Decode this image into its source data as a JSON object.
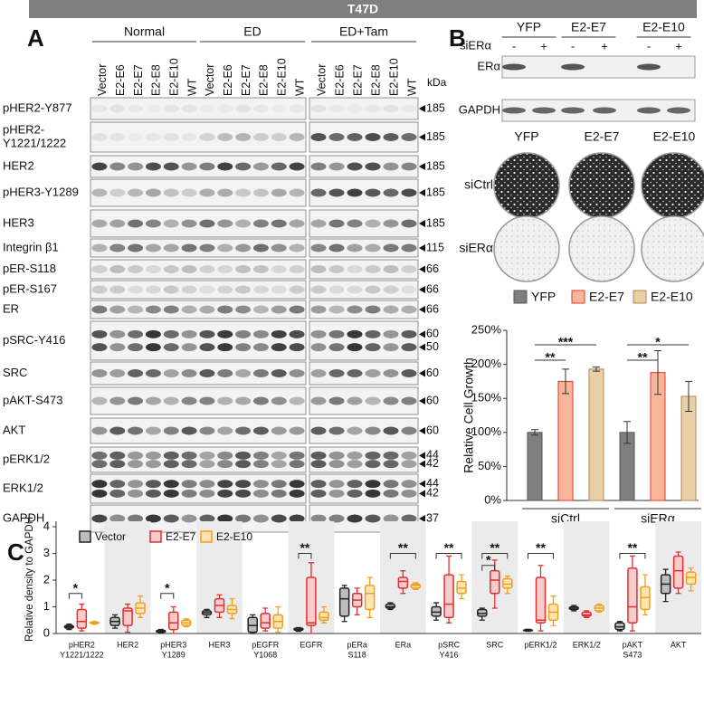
{
  "banner": "T47D",
  "panel_a": {
    "label": "A",
    "groups": [
      {
        "name": "Normal",
        "lanes": [
          "Vector",
          "E2-E6",
          "E2-E7",
          "E2-E8",
          "E2-E10",
          "WT"
        ]
      },
      {
        "name": "ED",
        "lanes": [
          "Vector",
          "E2-E6",
          "E2-E7",
          "E2-E8",
          "E2-E10",
          "WT"
        ]
      },
      {
        "name": "ED+Tam",
        "lanes": [
          "Vector",
          "E2-E6",
          "E2-E7",
          "E2-E8",
          "E2-E10",
          "WT"
        ]
      }
    ],
    "kda_header": "kDa",
    "rows": [
      {
        "label": [
          "pHER2-Y877"
        ],
        "kda": [
          "185"
        ]
      },
      {
        "label": [
          "pHER2-",
          "Y1221/1222"
        ],
        "kda": [
          "185"
        ]
      },
      {
        "label": [
          "HER2"
        ],
        "kda": [
          "185"
        ]
      },
      {
        "label": [
          "pHER3-Y1289"
        ],
        "kda": [
          "185"
        ]
      },
      {
        "label": [
          "HER3"
        ],
        "kda": [
          "185"
        ]
      },
      {
        "label": [
          "Integrin β1"
        ],
        "kda": [
          "115"
        ]
      },
      {
        "label": [
          "pER-S118"
        ],
        "kda": [
          "66"
        ]
      },
      {
        "label": [
          "pER-S167"
        ],
        "kda": [
          "66"
        ]
      },
      {
        "label": [
          "ER"
        ],
        "kda": [
          "66"
        ]
      },
      {
        "label": [
          "pSRC-Y416"
        ],
        "kda": [
          "60",
          "50"
        ]
      },
      {
        "label": [
          "SRC"
        ],
        "kda": [
          "60"
        ]
      },
      {
        "label": [
          "pAKT-S473"
        ],
        "kda": [
          "60"
        ]
      },
      {
        "label": [
          "AKT"
        ],
        "kda": [
          "60"
        ]
      },
      {
        "label": [
          "pERK1/2"
        ],
        "kda": [
          "44",
          "42"
        ]
      },
      {
        "label": [
          "ERK1/2"
        ],
        "kda": [
          "44",
          "42"
        ]
      },
      {
        "label": [
          "GAPDH"
        ],
        "kda": [
          "37"
        ]
      }
    ]
  },
  "panel_b": {
    "label": "B",
    "blot": {
      "groups": [
        "YFP",
        "E2-E7",
        "E2-E10"
      ],
      "treatment": "siERα",
      "lanes": [
        "-",
        "+",
        "-",
        "+",
        "-",
        "+"
      ],
      "rows": [
        "ERα",
        "GAPDH"
      ]
    },
    "colony": {
      "columns": [
        "YFP",
        "E2-E7",
        "E2-E10"
      ],
      "rows": [
        "siCtrl",
        "siERα"
      ]
    }
  },
  "panel_c": {
    "label": "C"
  },
  "chart_data": [
    {
      "type": "bar",
      "y_label": "Relative Cell Growth",
      "categories": [
        "siCtrl",
        "siERα"
      ],
      "ylim": [
        0,
        250
      ],
      "yticks": [
        {
          "value": 0,
          "label": "0%"
        },
        {
          "value": 50,
          "label": "50%"
        },
        {
          "value": 100,
          "label": "100%"
        },
        {
          "value": 150,
          "label": "150%"
        },
        {
          "value": 200,
          "label": "200%"
        },
        {
          "value": 250,
          "label": "250%"
        }
      ],
      "series": [
        {
          "name": "YFP",
          "color": "#7f7f7f",
          "edgecolor": "#555555",
          "values": [
            100,
            100
          ],
          "errors": [
            4,
            16
          ]
        },
        {
          "name": "E2-E7",
          "color": "#f9b49a",
          "edgecolor": "#d93a2b",
          "values": [
            175,
            188
          ],
          "errors": [
            18,
            32
          ]
        },
        {
          "name": "E2-E10",
          "color": "#e8cfa6",
          "edgecolor": "#b08a50",
          "values": [
            193,
            153
          ],
          "errors": [
            3,
            22
          ]
        }
      ],
      "annotations": [
        "**",
        "***",
        "**",
        "*"
      ]
    },
    {
      "type": "box",
      "y_label": "Relative density to GAPDH",
      "ylim": [
        0,
        4
      ],
      "yticks": [
        0,
        1,
        2,
        3,
        4
      ],
      "categories": [
        [
          "pHER2",
          "Y1221/1222"
        ],
        [
          "HER2"
        ],
        [
          "pHER3",
          "Y1289"
        ],
        [
          "HER3"
        ],
        [
          "pEGFR",
          "Y1068"
        ],
        [
          "EGFR"
        ],
        [
          "pERa",
          "S118"
        ],
        [
          "ERa"
        ],
        [
          "pSRC",
          "Y416"
        ],
        [
          "SRC"
        ],
        [
          "pERK1/2"
        ],
        [
          "ERK1/2"
        ],
        [
          "pAKT",
          "S473"
        ],
        [
          "AKT"
        ]
      ],
      "series": [
        {
          "name": "Vector",
          "color": "#bdbdbd",
          "edgecolor": "#222222",
          "values": [
            [
              0.15,
              0.2,
              0.25,
              0.3,
              0.35
            ],
            [
              0.2,
              0.3,
              0.45,
              0.6,
              0.7
            ],
            [
              0.02,
              0.05,
              0.08,
              0.12,
              0.15
            ],
            [
              0.6,
              0.7,
              0.78,
              0.85,
              0.9
            ],
            [
              0.0,
              0.05,
              0.3,
              0.6,
              0.7
            ],
            [
              0.08,
              0.12,
              0.15,
              0.2,
              0.22
            ],
            [
              0.45,
              0.65,
              1.3,
              1.7,
              1.8
            ],
            [
              0.9,
              0.95,
              1.0,
              1.1,
              1.15
            ],
            [
              0.5,
              0.65,
              0.8,
              1.0,
              1.15
            ],
            [
              0.5,
              0.65,
              0.75,
              0.9,
              0.95
            ],
            [
              0.08,
              0.1,
              0.12,
              0.14,
              0.16
            ],
            [
              0.85,
              0.9,
              0.95,
              1.0,
              1.05
            ],
            [
              0.1,
              0.15,
              0.25,
              0.4,
              0.45
            ],
            [
              1.2,
              1.5,
              1.85,
              2.2,
              2.4
            ]
          ]
        },
        {
          "name": "E2-E7",
          "color": "#f8cccc",
          "edgecolor": "#e03030",
          "values": [
            [
              0.1,
              0.2,
              0.45,
              0.9,
              1.1
            ],
            [
              0.05,
              0.3,
              0.85,
              0.95,
              1.1
            ],
            [
              0.0,
              0.15,
              0.4,
              0.8,
              1.0
            ],
            [
              0.6,
              0.8,
              1.05,
              1.3,
              1.45
            ],
            [
              0.1,
              0.2,
              0.4,
              0.75,
              0.95
            ],
            [
              0.0,
              0.3,
              0.4,
              2.1,
              2.65
            ],
            [
              0.7,
              1.0,
              1.25,
              1.5,
              1.7
            ],
            [
              1.5,
              1.7,
              1.95,
              2.1,
              2.35
            ],
            [
              0.4,
              0.6,
              1.1,
              2.2,
              2.9
            ],
            [
              0.95,
              1.5,
              2.0,
              2.35,
              2.75
            ],
            [
              0.1,
              0.4,
              0.5,
              2.1,
              2.55
            ],
            [
              0.6,
              0.65,
              0.7,
              0.8,
              0.85
            ],
            [
              0.1,
              0.4,
              1.0,
              2.45,
              2.9
            ],
            [
              1.5,
              1.7,
              2.35,
              2.9,
              3.05
            ]
          ]
        },
        {
          "name": "E2-E10",
          "color": "#fde4b0",
          "edgecolor": "#f0a020",
          "values": [
            [
              0.35,
              0.38,
              0.4,
              0.42,
              0.45
            ],
            [
              0.6,
              0.75,
              0.95,
              1.15,
              1.4
            ],
            [
              0.25,
              0.3,
              0.4,
              0.5,
              0.55
            ],
            [
              0.55,
              0.75,
              0.9,
              1.05,
              1.3
            ],
            [
              0.05,
              0.2,
              0.45,
              0.7,
              1.0
            ],
            [
              0.4,
              0.5,
              0.6,
              0.8,
              1.0
            ],
            [
              0.6,
              0.9,
              1.5,
              1.8,
              2.1
            ],
            [
              1.65,
              1.7,
              1.8,
              1.85,
              1.9
            ],
            [
              1.3,
              1.5,
              1.7,
              1.95,
              2.2
            ],
            [
              1.5,
              1.7,
              1.85,
              2.05,
              2.15
            ],
            [
              0.3,
              0.5,
              0.8,
              1.1,
              1.4
            ],
            [
              0.8,
              0.85,
              0.95,
              1.05,
              1.1
            ],
            [
              0.7,
              0.9,
              1.35,
              1.75,
              2.2
            ],
            [
              1.6,
              1.85,
              2.1,
              2.3,
              2.45
            ]
          ]
        }
      ],
      "annotations": [
        "*",
        "*",
        "**",
        "**",
        "**",
        "**",
        "*",
        "**",
        "**"
      ]
    }
  ]
}
